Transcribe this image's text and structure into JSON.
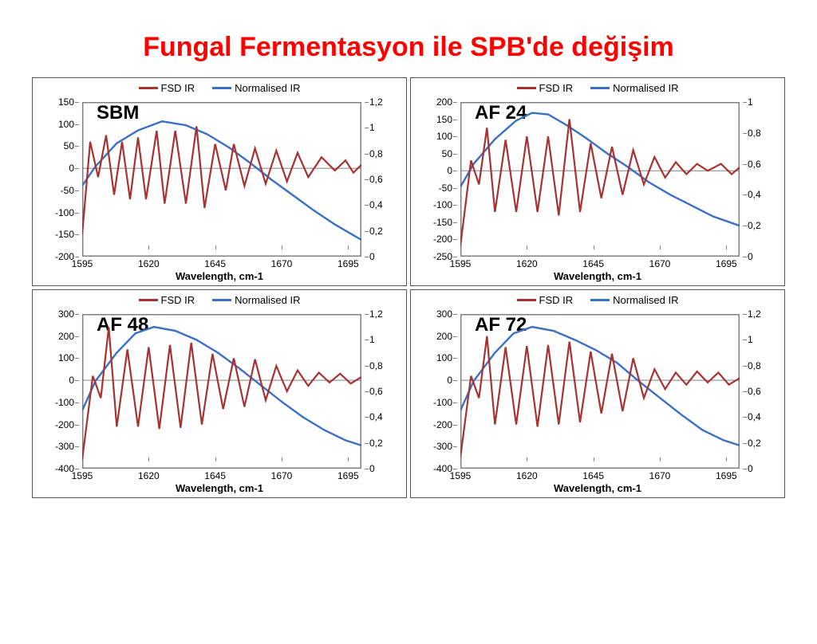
{
  "title": "Fungal Fermentasyon ile SPB'de değişim",
  "title_color": "#ff0000",
  "colors": {
    "fsd": "#a63232",
    "norm": "#3b6fc3",
    "axis": "#808080",
    "border": "#555555"
  },
  "legend": {
    "fsd": "FSD IR",
    "norm": "Normalised IR"
  },
  "xlabel": "Wavelength, cm-1",
  "xlim": [
    1595,
    1700
  ],
  "xticks": [
    1595,
    1620,
    1645,
    1670,
    1695
  ],
  "line_width_fsd": 2.2,
  "line_width_norm": 2.4,
  "panels": [
    {
      "label": "SBM",
      "y1lim": [
        -200,
        150
      ],
      "y1ticks": [
        -200,
        -150,
        -100,
        -50,
        0,
        50,
        100,
        150
      ],
      "y2lim": [
        0,
        1.2
      ],
      "y2ticks": [
        0,
        0.2,
        0.4,
        0.6,
        0.8,
        1,
        1.2
      ],
      "fsd": [
        [
          1595,
          -150
        ],
        [
          1598,
          60
        ],
        [
          1601,
          -20
        ],
        [
          1604,
          75
        ],
        [
          1607,
          -60
        ],
        [
          1610,
          60
        ],
        [
          1613,
          -70
        ],
        [
          1616,
          70
        ],
        [
          1619,
          -70
        ],
        [
          1623,
          85
        ],
        [
          1626,
          -80
        ],
        [
          1630,
          85
        ],
        [
          1634,
          -80
        ],
        [
          1638,
          95
        ],
        [
          1641,
          -90
        ],
        [
          1645,
          55
        ],
        [
          1649,
          -50
        ],
        [
          1652,
          55
        ],
        [
          1656,
          -40
        ],
        [
          1660,
          45
        ],
        [
          1664,
          -35
        ],
        [
          1668,
          40
        ],
        [
          1672,
          -30
        ],
        [
          1676,
          35
        ],
        [
          1680,
          -20
        ],
        [
          1685,
          25
        ],
        [
          1690,
          -5
        ],
        [
          1694,
          18
        ],
        [
          1697,
          -10
        ],
        [
          1700,
          8
        ]
      ],
      "norm": [
        [
          1595,
          0.55
        ],
        [
          1600,
          0.7
        ],
        [
          1608,
          0.88
        ],
        [
          1616,
          0.98
        ],
        [
          1625,
          1.05
        ],
        [
          1634,
          1.02
        ],
        [
          1642,
          0.95
        ],
        [
          1650,
          0.85
        ],
        [
          1658,
          0.73
        ],
        [
          1666,
          0.6
        ],
        [
          1674,
          0.48
        ],
        [
          1682,
          0.36
        ],
        [
          1690,
          0.25
        ],
        [
          1700,
          0.13
        ]
      ]
    },
    {
      "label": "AF 24",
      "y1lim": [
        -250,
        200
      ],
      "y1ticks": [
        -250,
        -200,
        -150,
        -100,
        -50,
        0,
        50,
        100,
        150,
        200
      ],
      "y2lim": [
        0,
        1
      ],
      "y2ticks": [
        0,
        0.2,
        0.4,
        0.6,
        0.8,
        1
      ],
      "fsd": [
        [
          1595,
          -220
        ],
        [
          1599,
          30
        ],
        [
          1602,
          -40
        ],
        [
          1605,
          125
        ],
        [
          1608,
          -120
        ],
        [
          1612,
          90
        ],
        [
          1616,
          -120
        ],
        [
          1620,
          100
        ],
        [
          1624,
          -120
        ],
        [
          1628,
          100
        ],
        [
          1632,
          -130
        ],
        [
          1636,
          150
        ],
        [
          1640,
          -120
        ],
        [
          1644,
          80
        ],
        [
          1648,
          -80
        ],
        [
          1652,
          70
        ],
        [
          1656,
          -70
        ],
        [
          1660,
          60
        ],
        [
          1664,
          -40
        ],
        [
          1668,
          40
        ],
        [
          1672,
          -20
        ],
        [
          1676,
          25
        ],
        [
          1680,
          -10
        ],
        [
          1684,
          20
        ],
        [
          1688,
          0
        ],
        [
          1693,
          20
        ],
        [
          1697,
          -10
        ],
        [
          1700,
          10
        ]
      ],
      "norm": [
        [
          1595,
          0.45
        ],
        [
          1600,
          0.6
        ],
        [
          1608,
          0.76
        ],
        [
          1616,
          0.88
        ],
        [
          1622,
          0.93
        ],
        [
          1628,
          0.92
        ],
        [
          1635,
          0.85
        ],
        [
          1642,
          0.77
        ],
        [
          1650,
          0.67
        ],
        [
          1658,
          0.58
        ],
        [
          1666,
          0.48
        ],
        [
          1674,
          0.4
        ],
        [
          1682,
          0.33
        ],
        [
          1690,
          0.26
        ],
        [
          1700,
          0.2
        ]
      ]
    },
    {
      "label": "AF 48",
      "y1lim": [
        -400,
        300
      ],
      "y1ticks": [
        -400,
        -300,
        -200,
        -100,
        0,
        100,
        200,
        300
      ],
      "y2lim": [
        0,
        1.2
      ],
      "y2ticks": [
        0,
        0.2,
        0.4,
        0.6,
        0.8,
        1,
        1.2
      ],
      "fsd": [
        [
          1595,
          -360
        ],
        [
          1599,
          20
        ],
        [
          1602,
          -80
        ],
        [
          1605,
          240
        ],
        [
          1608,
          -210
        ],
        [
          1612,
          140
        ],
        [
          1616,
          -210
        ],
        [
          1620,
          150
        ],
        [
          1624,
          -220
        ],
        [
          1628,
          160
        ],
        [
          1632,
          -215
        ],
        [
          1636,
          170
        ],
        [
          1640,
          -200
        ],
        [
          1644,
          120
        ],
        [
          1648,
          -130
        ],
        [
          1652,
          100
        ],
        [
          1656,
          -120
        ],
        [
          1660,
          95
        ],
        [
          1664,
          -90
        ],
        [
          1668,
          65
        ],
        [
          1672,
          -50
        ],
        [
          1676,
          45
        ],
        [
          1680,
          -25
        ],
        [
          1684,
          35
        ],
        [
          1688,
          -10
        ],
        [
          1692,
          30
        ],
        [
          1696,
          -15
        ],
        [
          1700,
          15
        ]
      ],
      "norm": [
        [
          1595,
          0.45
        ],
        [
          1600,
          0.68
        ],
        [
          1608,
          0.9
        ],
        [
          1615,
          1.05
        ],
        [
          1622,
          1.1
        ],
        [
          1630,
          1.07
        ],
        [
          1638,
          1.0
        ],
        [
          1646,
          0.9
        ],
        [
          1654,
          0.78
        ],
        [
          1662,
          0.65
        ],
        [
          1670,
          0.52
        ],
        [
          1678,
          0.4
        ],
        [
          1686,
          0.3
        ],
        [
          1694,
          0.22
        ],
        [
          1700,
          0.18
        ]
      ]
    },
    {
      "label": "AF 72",
      "y1lim": [
        -400,
        300
      ],
      "y1ticks": [
        -400,
        -300,
        -200,
        -100,
        0,
        100,
        200,
        300
      ],
      "y2lim": [
        0,
        1.2
      ],
      "y2ticks": [
        0,
        0.2,
        0.4,
        0.6,
        0.8,
        1,
        1.2
      ],
      "fsd": [
        [
          1595,
          -350
        ],
        [
          1599,
          20
        ],
        [
          1602,
          -80
        ],
        [
          1605,
          200
        ],
        [
          1608,
          -200
        ],
        [
          1612,
          150
        ],
        [
          1616,
          -200
        ],
        [
          1620,
          155
        ],
        [
          1624,
          -210
        ],
        [
          1628,
          160
        ],
        [
          1632,
          -200
        ],
        [
          1636,
          175
        ],
        [
          1640,
          -190
        ],
        [
          1644,
          130
        ],
        [
          1648,
          -150
        ],
        [
          1652,
          120
        ],
        [
          1656,
          -140
        ],
        [
          1660,
          100
        ],
        [
          1664,
          -80
        ],
        [
          1668,
          50
        ],
        [
          1672,
          -40
        ],
        [
          1676,
          35
        ],
        [
          1680,
          -20
        ],
        [
          1684,
          40
        ],
        [
          1688,
          -10
        ],
        [
          1692,
          35
        ],
        [
          1696,
          -20
        ],
        [
          1700,
          10
        ]
      ],
      "norm": [
        [
          1595,
          0.45
        ],
        [
          1600,
          0.68
        ],
        [
          1608,
          0.9
        ],
        [
          1615,
          1.05
        ],
        [
          1622,
          1.1
        ],
        [
          1630,
          1.07
        ],
        [
          1638,
          1.0
        ],
        [
          1646,
          0.92
        ],
        [
          1654,
          0.82
        ],
        [
          1662,
          0.68
        ],
        [
          1670,
          0.55
        ],
        [
          1678,
          0.42
        ],
        [
          1686,
          0.3
        ],
        [
          1694,
          0.22
        ],
        [
          1700,
          0.18
        ]
      ]
    }
  ]
}
